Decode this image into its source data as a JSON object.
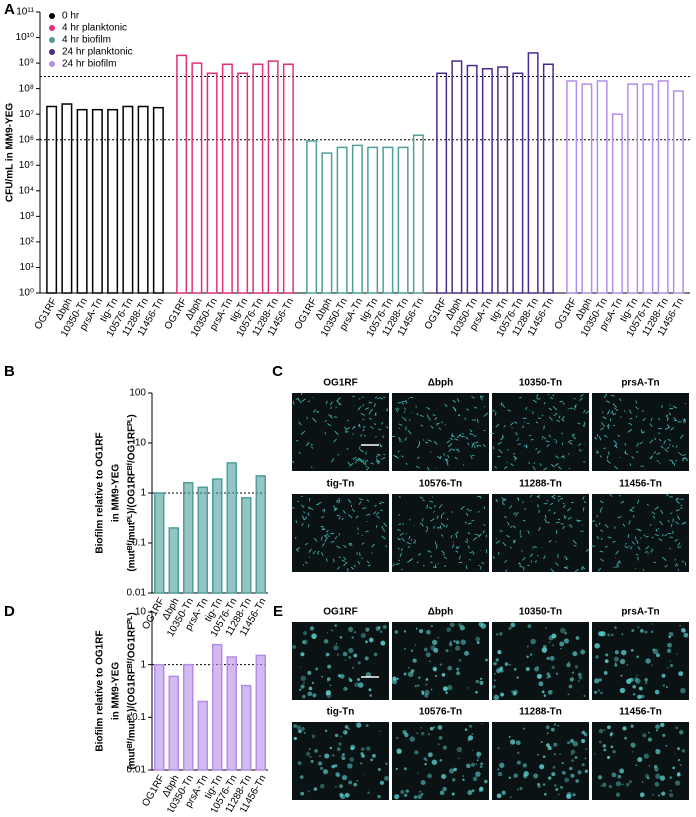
{
  "chart_data": [
    {
      "type": "bar",
      "log": true,
      "ylabel": [
        "CFU/mL in MM9-YEG"
      ],
      "categories": [
        "OG1RF",
        "Δbph",
        "10350-Tn",
        "prsA-Tn",
        "tig-Tn",
        "10576-Tn",
        "11288-Tn",
        "11456-Tn"
      ],
      "series": [
        {
          "name": "0 hr",
          "color": "#000000",
          "values": [
            20000000,
            25000000,
            15000000,
            15000000,
            15000000,
            20000000,
            20000000,
            18000000
          ]
        },
        {
          "name": "4 hr planktonic",
          "color": "#e0307a",
          "values": [
            2000000000,
            1000000000,
            400000000,
            900000000,
            400000000,
            900000000,
            1200000000,
            900000000
          ]
        },
        {
          "name": "4 hr biofilm",
          "color": "#4e9e9a",
          "values": [
            900000,
            300000,
            500000,
            600000,
            500000,
            500000,
            500000,
            1500000
          ]
        },
        {
          "name": "24 hr planktonic",
          "color": "#4b2a8f",
          "values": [
            400000000,
            1200000000,
            800000000,
            600000000,
            700000000,
            400000000,
            2500000000,
            900000000
          ]
        },
        {
          "name": "24 hr biofilm",
          "color": "#b38de8",
          "values": [
            200000000,
            150000000,
            200000000,
            10000000,
            150000000,
            150000000,
            200000000,
            80000000
          ]
        }
      ],
      "ylim": [
        1,
        100000000000
      ],
      "yticks": [
        {
          "value": 1,
          "label": "10⁰"
        },
        {
          "value": 10,
          "label": "10¹"
        },
        {
          "value": 100,
          "label": "10²"
        },
        {
          "value": 1000,
          "label": "10³"
        },
        {
          "value": 10000,
          "label": "10⁴"
        },
        {
          "value": 100000,
          "label": "10⁵"
        },
        {
          "value": 1000000,
          "label": "10⁶"
        },
        {
          "value": 10000000,
          "label": "10⁷"
        },
        {
          "value": 100000000,
          "label": "10⁸"
        },
        {
          "value": 1000000000,
          "label": "10⁹"
        },
        {
          "value": 10000000000,
          "label": "10¹⁰"
        },
        {
          "value": 100000000000,
          "label": "10¹¹"
        }
      ],
      "reference_lines": [
        300000000,
        1000000
      ],
      "legend": "top-left",
      "panel": "A"
    },
    {
      "type": "bar",
      "log": true,
      "ylabel": [
        "Biofilm relative to OG1RF",
        "in MM9-YEG",
        "(mutᴮᶠ/mutᴾᴸ)/(OG1RFᴮᶠ/OG1RFᴾᴸ)"
      ],
      "categories": [
        "OG1RF",
        "Δbph",
        "10350-Tn",
        "prsA-Tn",
        "tig-Tn",
        "10576-Tn",
        "11288-Tn",
        "11456-Tn"
      ],
      "values": [
        1,
        0.2,
        1.6,
        1.3,
        1.9,
        4,
        0.8,
        2.2
      ],
      "color": "#4e9e9a",
      "ylim": [
        0.01,
        100
      ],
      "yticks": [
        0.01,
        0.1,
        1,
        10,
        100
      ],
      "reference_lines": [
        1
      ],
      "panel": "B"
    },
    {
      "type": "bar",
      "log": true,
      "ylabel": [
        "Biofilm relative to OG1RF",
        "in MM9-YEG",
        "(mutᴮᶠ/mutᴾᴸ)/(OG1RFᴮᶠ/OG1RFᴾᴸ)"
      ],
      "categories": [
        "OG1RF",
        "Δbph",
        "10350-Tn",
        "prsA-Tn",
        "tig-Tn",
        "10576-Tn",
        "11288-Tn",
        "11456-Tn"
      ],
      "values": [
        1,
        0.6,
        1.0,
        0.2,
        2.4,
        1.4,
        0.4,
        1.5
      ],
      "color": "#b38de8",
      "ylim": [
        0.01,
        10
      ],
      "yticks": [
        0.01,
        0.1,
        1,
        10
      ],
      "reference_lines": [
        1
      ],
      "panel": "D"
    }
  ],
  "image_panels": [
    {
      "panel": "C",
      "titles": [
        "OG1RF",
        "Δbph",
        "10350-Tn",
        "prsA-Tn",
        "tig-Tn",
        "10576-Tn",
        "11288-Tn",
        "11456-Tn"
      ]
    },
    {
      "panel": "E",
      "titles": [
        "OG1RF",
        "Δbph",
        "10350-Tn",
        "prsA-Tn",
        "tig-Tn",
        "10576-Tn",
        "11288-Tn",
        "11456-Tn"
      ]
    }
  ]
}
